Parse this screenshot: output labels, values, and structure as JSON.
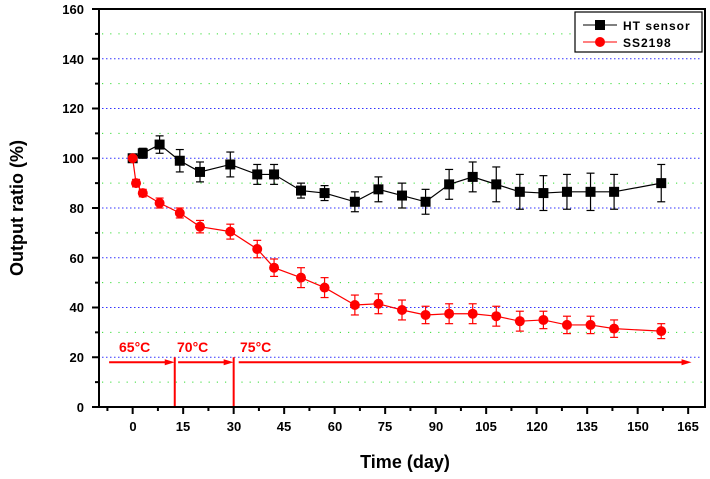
{
  "chart_data": {
    "type": "line",
    "title": "",
    "xlabel": "Time (day)",
    "ylabel": "Output ratio (%)",
    "xlim": [
      -10,
      170
    ],
    "ylim": [
      0,
      160
    ],
    "xticks": [
      0,
      15,
      30,
      45,
      60,
      75,
      90,
      105,
      120,
      135,
      150,
      165
    ],
    "xtick_labels": [
      "0",
      "15",
      "30",
      "45",
      "60",
      "75",
      "90",
      "105",
      "120",
      "135",
      "150",
      "165"
    ],
    "yticks": [
      0,
      20,
      40,
      60,
      80,
      100,
      120,
      140,
      160
    ],
    "ytick_labels": [
      "0",
      "20",
      "40",
      "60",
      "80",
      "100",
      "120",
      "140",
      "160"
    ],
    "grid": {
      "major_color": "#3333ff",
      "minor_color": "#33dd33",
      "major_values": [
        20,
        40,
        60,
        80,
        100,
        120,
        140
      ],
      "minor_values": [
        10,
        30,
        50,
        70,
        90,
        110,
        130,
        150
      ]
    },
    "legend": {
      "placement": "top-right",
      "entries": [
        "HT sensor",
        "SS2198"
      ]
    },
    "series": [
      {
        "name": "HT sensor",
        "color": "#000000",
        "marker": "square",
        "x": [
          0,
          3,
          8,
          14,
          20,
          29,
          37,
          42,
          50,
          57,
          66,
          73,
          80,
          87,
          94,
          101,
          108,
          115,
          122,
          129,
          136,
          143,
          157
        ],
        "y": [
          100,
          102,
          105.5,
          99,
          94.5,
          97.5,
          93.5,
          93.5,
          87,
          86,
          82.5,
          87.5,
          85,
          82.5,
          89.5,
          92.5,
          89.5,
          86.5,
          86,
          86.5,
          86.5,
          86.5,
          90
        ],
        "err": [
          1,
          2,
          3.5,
          4.5,
          4,
          5,
          4,
          4,
          3,
          3,
          4,
          5,
          5,
          5,
          6,
          6,
          7,
          7,
          7,
          7,
          7.5,
          7,
          7.5
        ]
      },
      {
        "name": "SS2198",
        "color": "#ff0000",
        "marker": "circle",
        "x": [
          0,
          1,
          3,
          8,
          14,
          20,
          29,
          37,
          42,
          50,
          57,
          66,
          73,
          80,
          87,
          94,
          101,
          108,
          115,
          122,
          129,
          136,
          143,
          157
        ],
        "y": [
          100,
          90,
          86,
          82,
          78,
          72.5,
          70.5,
          63.5,
          56,
          52,
          48,
          41,
          41.5,
          39,
          37,
          37.5,
          37.5,
          36.5,
          34.5,
          35,
          33,
          33,
          31.5,
          30.5
        ],
        "err": [
          1,
          1.5,
          1.5,
          2,
          2,
          2.5,
          3,
          3.5,
          3.5,
          4,
          4,
          4,
          4,
          4,
          3.5,
          4,
          4,
          4,
          4,
          3.5,
          3.5,
          3.5,
          3.5,
          3
        ]
      }
    ],
    "annotations": [
      {
        "text": "65°C",
        "from_day": -7,
        "to_day": 12.5
      },
      {
        "text": "70°C",
        "from_day": 13.5,
        "to_day": 30
      },
      {
        "text": "75°C",
        "from_day": 31.5,
        "to_day": 166
      }
    ],
    "dividers_day": [
      12.5,
      30
    ],
    "annotation_level": 18,
    "annotation_color": "#ff0000"
  }
}
